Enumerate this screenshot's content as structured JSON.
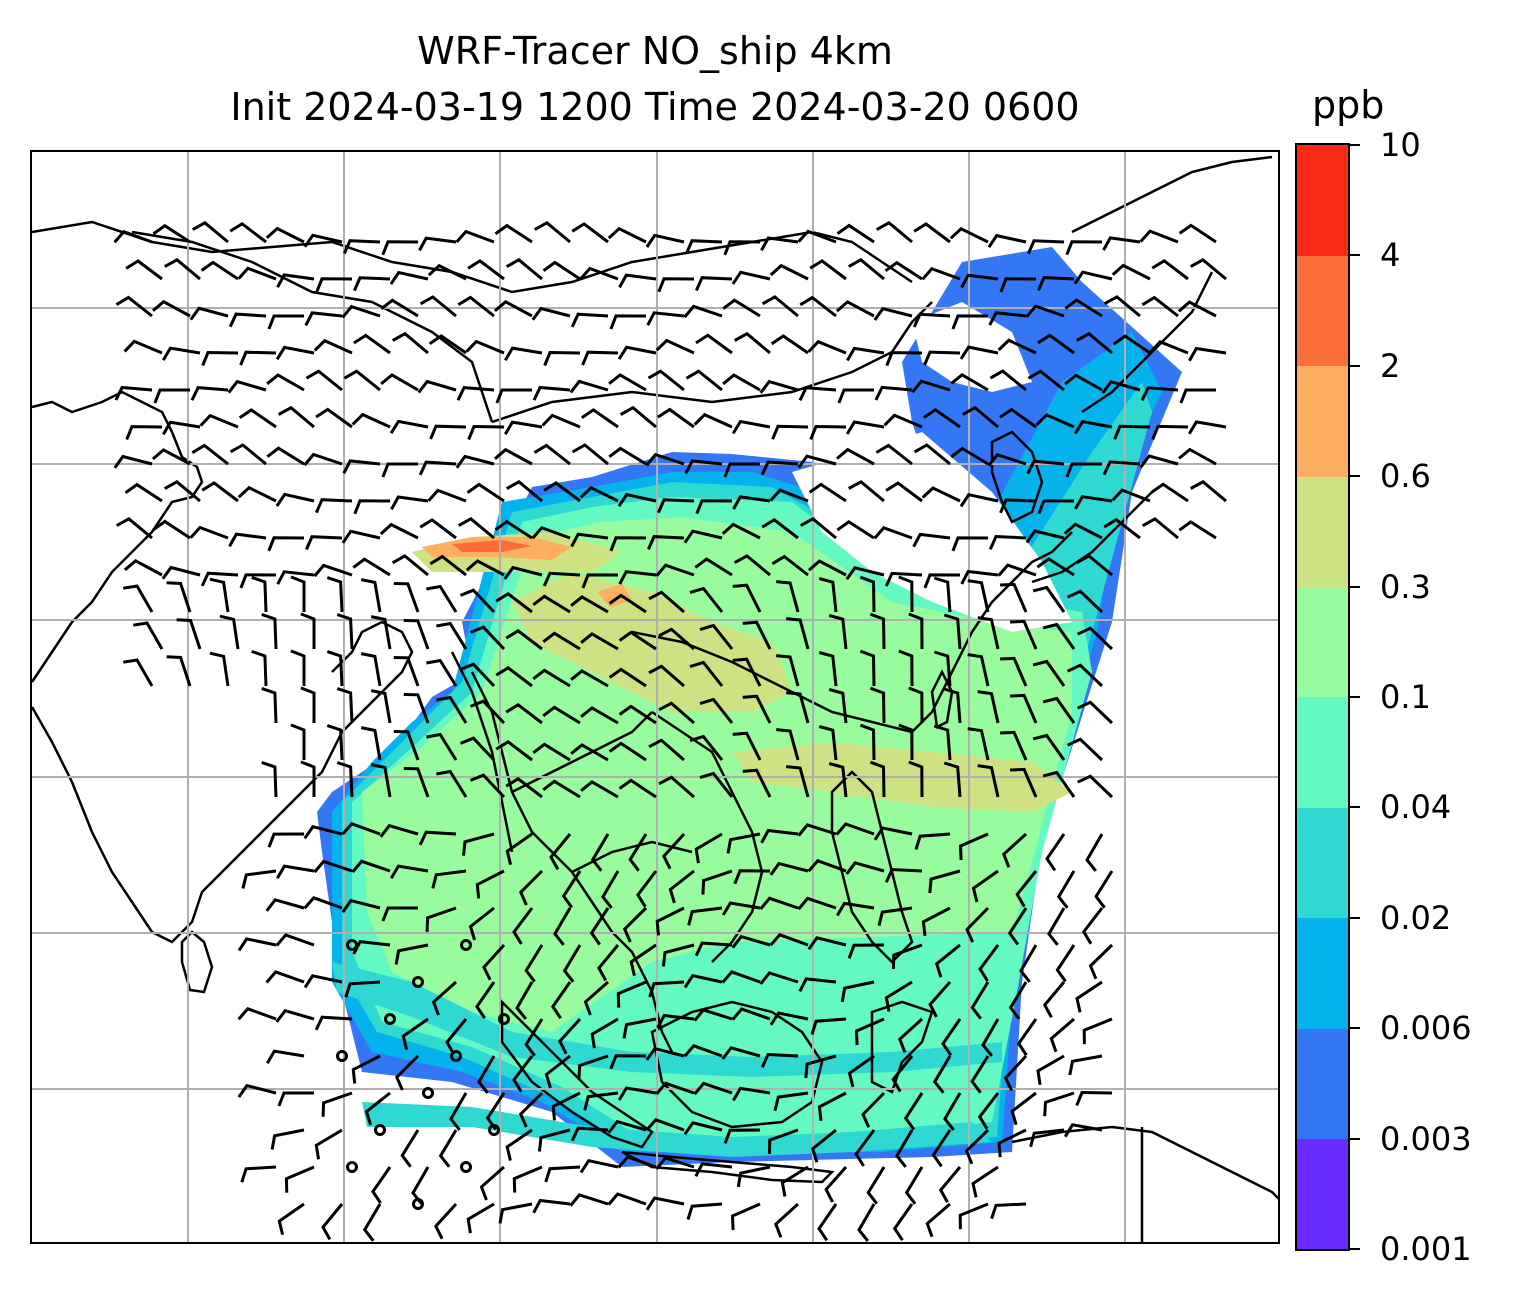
{
  "title_line1": "WRF-Tracer NO_ship 4km",
  "title_line2": "Init 2024-03-19 1200 Time 2024-03-20 0600",
  "colorbar": {
    "unit": "ppb",
    "levels": [
      "0.001",
      "0.003",
      "0.006",
      "0.02",
      "0.04",
      "0.1",
      "0.3",
      "0.6",
      "2",
      "4",
      "10"
    ],
    "colors": [
      "#6a2bff",
      "#3377f5",
      "#06b2ec",
      "#2fd9d2",
      "#64f8c2",
      "#98fb9e",
      "#cfe283",
      "#fdae61",
      "#fd6c3b",
      "#fb2a16"
    ]
  },
  "chart_data": {
    "type": "heatmap",
    "variable": "NO_ship",
    "unit": "ppb",
    "contour_levels": [
      0.001,
      0.003,
      0.006,
      0.02,
      0.04,
      0.1,
      0.3,
      0.6,
      2,
      4,
      10
    ],
    "overlays": [
      "coastlines",
      "country borders",
      "wind barbs",
      "lat-lon grid"
    ],
    "gridlines": true,
    "legend_placement": "colorbar-right"
  }
}
